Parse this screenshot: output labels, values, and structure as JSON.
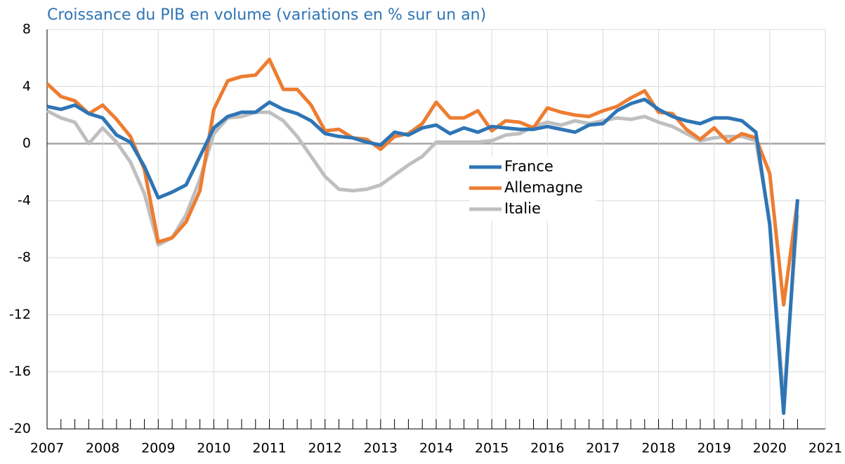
{
  "chart_data": {
    "type": "line",
    "title": "Croissance du PIB en volume (variations en % sur un an)",
    "x": [
      2007,
      2007.25,
      2007.5,
      2007.75,
      2008,
      2008.25,
      2008.5,
      2008.75,
      2009,
      2009.25,
      2009.5,
      2009.75,
      2010,
      2010.25,
      2010.5,
      2010.75,
      2011,
      2011.25,
      2011.5,
      2011.75,
      2012,
      2012.25,
      2012.5,
      2012.75,
      2013,
      2013.25,
      2013.5,
      2013.75,
      2014,
      2014.25,
      2014.5,
      2014.75,
      2015,
      2015.25,
      2015.5,
      2015.75,
      2016,
      2016.25,
      2016.5,
      2016.75,
      2017,
      2017.25,
      2017.5,
      2017.75,
      2018,
      2018.25,
      2018.5,
      2018.75,
      2019,
      2019.25,
      2019.5,
      2019.75,
      2020,
      2020.25,
      2020.5
    ],
    "series": [
      {
        "name": "France",
        "color": "#2e75b6",
        "values": [
          2.6,
          2.4,
          2.7,
          2.1,
          1.8,
          0.6,
          0.1,
          -1.6,
          -3.8,
          -3.4,
          -2.9,
          -0.9,
          1.1,
          1.9,
          2.2,
          2.2,
          2.9,
          2.4,
          2.1,
          1.6,
          0.7,
          0.5,
          0.4,
          0.1,
          -0.1,
          0.8,
          0.6,
          1.1,
          1.3,
          0.7,
          1.1,
          0.8,
          1.2,
          1.1,
          1.0,
          1.0,
          1.2,
          1.0,
          0.8,
          1.3,
          1.4,
          2.3,
          2.8,
          3.1,
          2.4,
          1.9,
          1.6,
          1.4,
          1.8,
          1.8,
          1.6,
          0.8,
          -5.7,
          -18.9,
          -3.9
        ]
      },
      {
        "name": "Allemagne",
        "color": "#ed7d31",
        "values": [
          4.2,
          3.3,
          3.0,
          2.1,
          2.7,
          1.7,
          0.5,
          -1.8,
          -6.9,
          -6.6,
          -5.5,
          -3.3,
          2.4,
          4.4,
          4.7,
          4.8,
          5.9,
          3.8,
          3.8,
          2.7,
          0.9,
          1.0,
          0.4,
          0.3,
          -0.4,
          0.5,
          0.7,
          1.4,
          2.9,
          1.8,
          1.8,
          2.3,
          0.9,
          1.6,
          1.5,
          1.1,
          2.5,
          2.2,
          2.0,
          1.9,
          2.3,
          2.6,
          3.2,
          3.7,
          2.2,
          2.1,
          1.0,
          0.3,
          1.1,
          0.1,
          0.7,
          0.4,
          -2.1,
          -11.3,
          -4.0
        ]
      },
      {
        "name": "Italie",
        "color": "#bfbfbf",
        "values": [
          2.3,
          1.8,
          1.5,
          0.0,
          1.1,
          0.1,
          -1.3,
          -3.5,
          -7.1,
          -6.6,
          -5.0,
          -2.5,
          0.7,
          1.8,
          1.9,
          2.2,
          2.2,
          1.6,
          0.5,
          -0.9,
          -2.3,
          -3.2,
          -3.3,
          -3.2,
          -2.9,
          -2.2,
          -1.5,
          -0.9,
          0.1,
          0.1,
          0.1,
          0.1,
          0.2,
          0.6,
          0.7,
          1.2,
          1.5,
          1.3,
          1.6,
          1.4,
          1.6,
          1.8,
          1.7,
          1.9,
          1.5,
          1.2,
          0.7,
          0.2,
          0.4,
          0.5,
          0.5,
          0.2,
          -5.5,
          -18.0,
          -5.0
        ]
      }
    ],
    "xlim": [
      2007,
      2021
    ],
    "xticks": [
      2007,
      2008,
      2009,
      2010,
      2011,
      2012,
      2013,
      2014,
      2015,
      2016,
      2017,
      2018,
      2019,
      2020,
      2021
    ],
    "ylim": [
      -20,
      8
    ],
    "yticks": [
      -20,
      -16,
      -12,
      -8,
      -4,
      0,
      4,
      8
    ],
    "grid": true
  }
}
